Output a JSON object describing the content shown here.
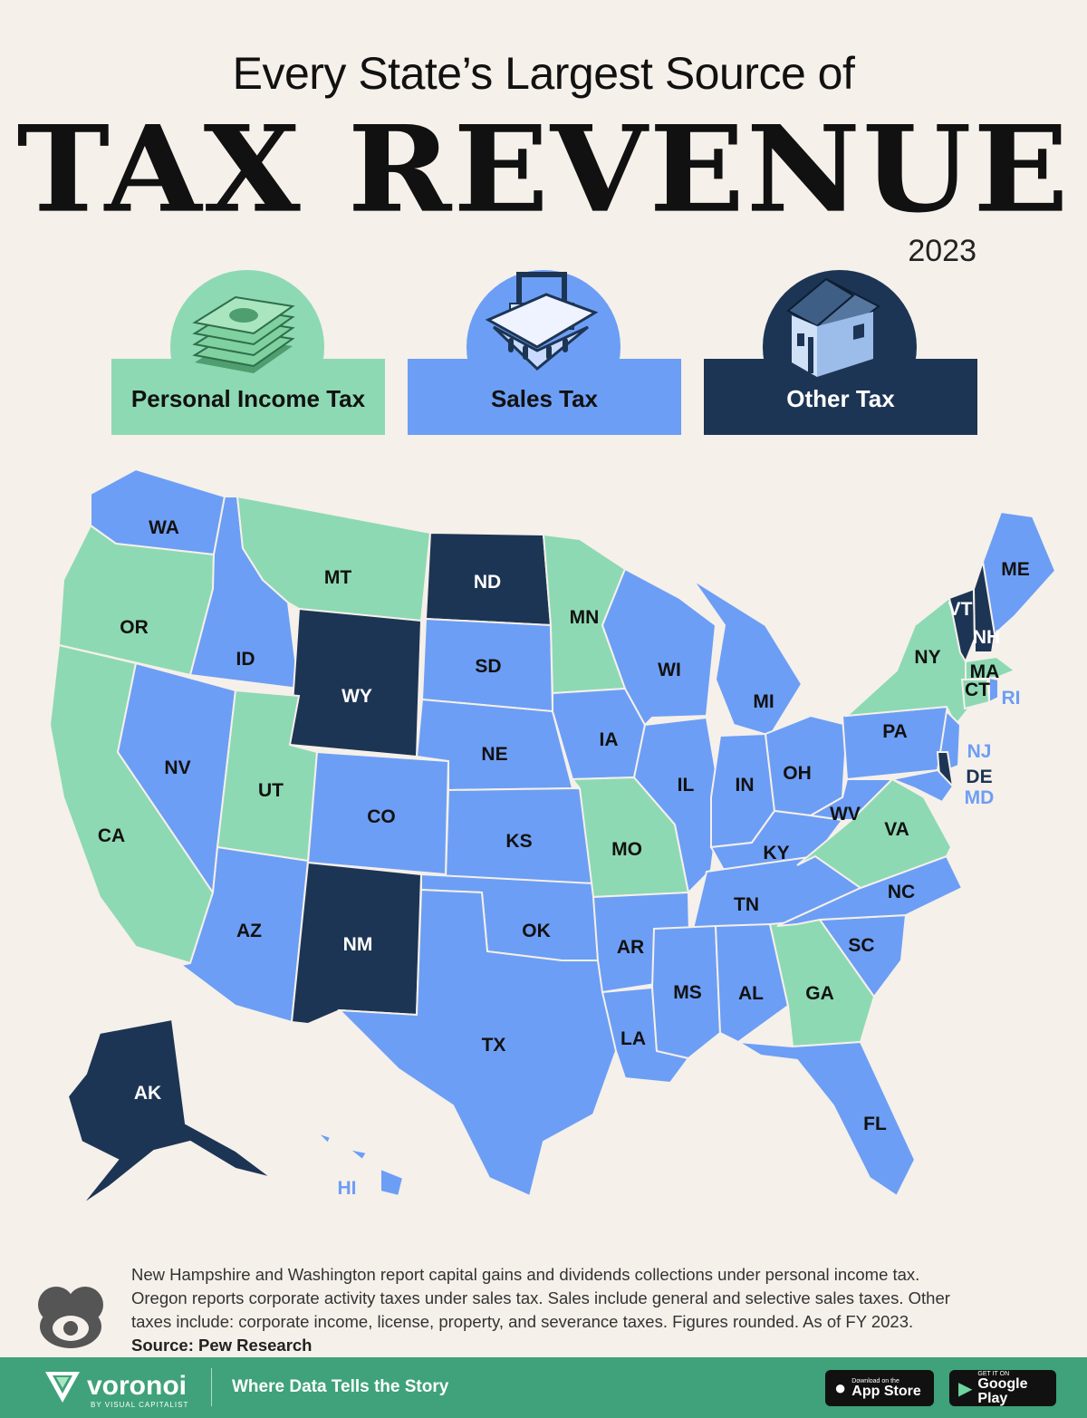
{
  "title": {
    "line1": "Every State’s Largest Source of",
    "line2": "TAX REVENUE",
    "year": "2023"
  },
  "legend": [
    {
      "label": "Personal Income Tax",
      "color": "#8dd9b3",
      "icon": "money-stack-icon"
    },
    {
      "label": "Sales Tax",
      "color": "#6d9ef5",
      "icon": "shopping-basket-icon"
    },
    {
      "label": "Other Tax",
      "color": "#1d3554",
      "icon": "house-icon"
    }
  ],
  "colors": {
    "income": "#8dd9b3",
    "sales": "#6d9ef5",
    "other": "#1d3554",
    "background": "#f5f0ea",
    "footer": "#3fa27a"
  },
  "states": [
    {
      "code": "WA",
      "category": "sales"
    },
    {
      "code": "OR",
      "category": "income"
    },
    {
      "code": "CA",
      "category": "income"
    },
    {
      "code": "ID",
      "category": "sales"
    },
    {
      "code": "NV",
      "category": "sales"
    },
    {
      "code": "MT",
      "category": "income"
    },
    {
      "code": "WY",
      "category": "other"
    },
    {
      "code": "UT",
      "category": "income"
    },
    {
      "code": "AZ",
      "category": "sales"
    },
    {
      "code": "CO",
      "category": "sales"
    },
    {
      "code": "NM",
      "category": "other"
    },
    {
      "code": "ND",
      "category": "other"
    },
    {
      "code": "SD",
      "category": "sales"
    },
    {
      "code": "NE",
      "category": "sales"
    },
    {
      "code": "KS",
      "category": "sales"
    },
    {
      "code": "OK",
      "category": "sales"
    },
    {
      "code": "TX",
      "category": "sales"
    },
    {
      "code": "MN",
      "category": "income"
    },
    {
      "code": "IA",
      "category": "sales"
    },
    {
      "code": "MO",
      "category": "income"
    },
    {
      "code": "AR",
      "category": "sales"
    },
    {
      "code": "LA",
      "category": "sales"
    },
    {
      "code": "WI",
      "category": "sales"
    },
    {
      "code": "IL",
      "category": "sales"
    },
    {
      "code": "MI",
      "category": "sales"
    },
    {
      "code": "IN",
      "category": "sales"
    },
    {
      "code": "OH",
      "category": "sales"
    },
    {
      "code": "KY",
      "category": "sales"
    },
    {
      "code": "TN",
      "category": "sales"
    },
    {
      "code": "MS",
      "category": "sales"
    },
    {
      "code": "AL",
      "category": "sales"
    },
    {
      "code": "GA",
      "category": "income"
    },
    {
      "code": "FL",
      "category": "sales"
    },
    {
      "code": "SC",
      "category": "sales"
    },
    {
      "code": "NC",
      "category": "sales"
    },
    {
      "code": "VA",
      "category": "income"
    },
    {
      "code": "WV",
      "category": "sales"
    },
    {
      "code": "PA",
      "category": "sales"
    },
    {
      "code": "NY",
      "category": "income"
    },
    {
      "code": "ME",
      "category": "sales"
    },
    {
      "code": "VT",
      "category": "other"
    },
    {
      "code": "NH",
      "category": "other"
    },
    {
      "code": "MA",
      "category": "income"
    },
    {
      "code": "CT",
      "category": "income"
    },
    {
      "code": "RI",
      "category": "sales"
    },
    {
      "code": "NJ",
      "category": "sales"
    },
    {
      "code": "DE",
      "category": "other"
    },
    {
      "code": "MD",
      "category": "sales"
    },
    {
      "code": "AK",
      "category": "other"
    },
    {
      "code": "HI",
      "category": "sales"
    }
  ],
  "footnote": {
    "text": "New Hampshire and Washington report capital gains and dividends collections under personal income tax. Oregon reports corporate activity taxes under sales tax. Sales include general and selective sales taxes. Other taxes include: corporate income, license, property, and severance taxes. Figures rounded. As of FY 2023.",
    "source": "Source: Pew Research"
  },
  "footer": {
    "brand": "voronoi",
    "brand_sub": "BY VISUAL CAPITALIST",
    "tagline": "Where Data Tells the Story",
    "appstore_small": "Download on the",
    "appstore_big": "App Store",
    "googleplay_small": "GET IT ON",
    "googleplay_big": "Google Play"
  }
}
